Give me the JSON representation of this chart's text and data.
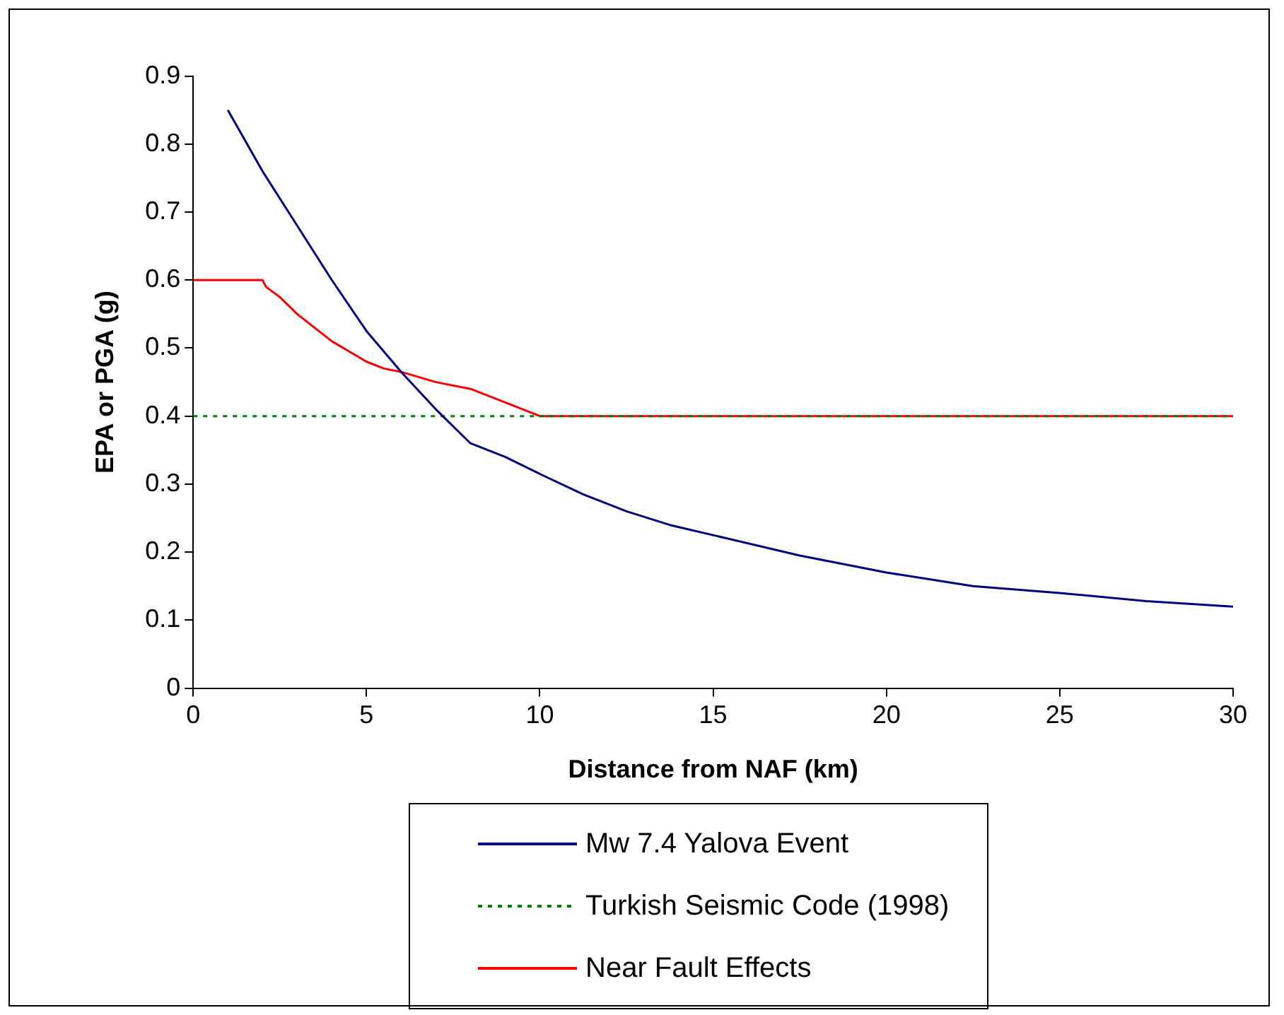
{
  "chart_data": {
    "type": "line",
    "xlabel": "Distance from NAF (km)",
    "ylabel": "EPA or PGA (g)",
    "xlim": [
      0,
      30
    ],
    "xticks": [
      0,
      5,
      10,
      15,
      20,
      25,
      30
    ],
    "ylim": [
      0,
      0.9
    ],
    "yticks": [
      0,
      0.1,
      0.2,
      0.3,
      0.4,
      0.5,
      0.6,
      0.7,
      0.8,
      0.9
    ],
    "grid": false,
    "legend": "bottom",
    "marker": "none",
    "series": [
      {
        "name": "Mw 7.4 Yalova Event",
        "color": "#000080",
        "line_style": "solid",
        "x": [
          1,
          2,
          3,
          4,
          5,
          6,
          7,
          8,
          9,
          10,
          11.25,
          12.5,
          13.75,
          15,
          17.5,
          20,
          22.5,
          25,
          27.5,
          30
        ],
        "values": [
          0.85,
          0.76,
          0.68,
          0.6,
          0.525,
          0.465,
          0.41,
          0.36,
          0.34,
          0.315,
          0.285,
          0.26,
          0.24,
          0.225,
          0.195,
          0.17,
          0.15,
          0.14,
          0.128,
          0.12
        ]
      },
      {
        "name": "Turkish Seismic Code (1998)",
        "color": "#008000",
        "line_style": "dotted",
        "x": [
          0,
          30
        ],
        "values": [
          0.4,
          0.4
        ]
      },
      {
        "name": "Near Fault Effects",
        "color": "#ff0000",
        "line_style": "solid",
        "x": [
          0,
          2,
          2.1,
          2.5,
          3,
          3.5,
          4,
          4.5,
          5,
          5.5,
          6,
          7,
          8,
          9,
          10,
          30
        ],
        "values": [
          0.6,
          0.6,
          0.59,
          0.575,
          0.55,
          0.53,
          0.51,
          0.495,
          0.48,
          0.47,
          0.465,
          0.45,
          0.44,
          0.42,
          0.4,
          0.4
        ]
      }
    ]
  }
}
